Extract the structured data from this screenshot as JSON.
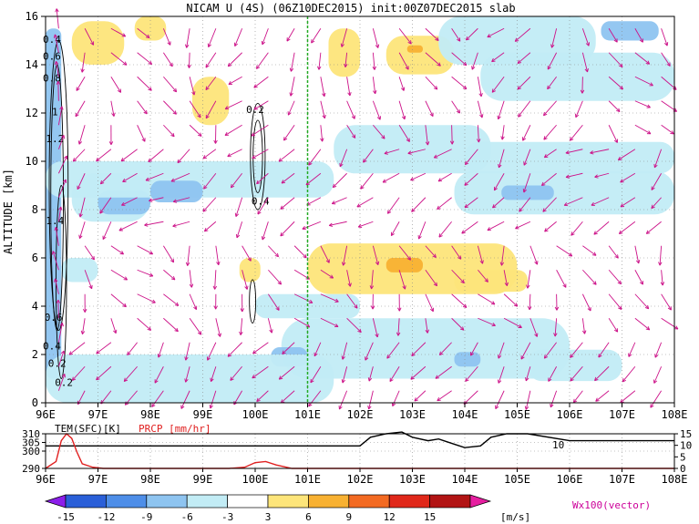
{
  "title": "NICAM U (4S) (06Z10DEC2015) init:00Z07DEC2015 slab",
  "chart_data": [
    {
      "type": "heatmap",
      "name": "u-wind cross-section",
      "ylabel": "ALTITUDE [km]",
      "x_ticks": [
        "96E",
        "97E",
        "98E",
        "99E",
        "100E",
        "101E",
        "102E",
        "103E",
        "104E",
        "105E",
        "106E",
        "107E",
        "108E"
      ],
      "xlim": [
        96,
        108
      ],
      "y_ticks": [
        "0",
        "2",
        "4",
        "6",
        "8",
        "10",
        "12",
        "14",
        "16"
      ],
      "ylim": [
        0,
        16
      ],
      "grid": "dotted",
      "reference_line": {
        "x": 101,
        "color": "#22aa22",
        "style": "dashed"
      },
      "contour_labels": [
        {
          "text": "0.4",
          "lon": 96.12,
          "alt": 14.9
        },
        {
          "text": "0.6",
          "lon": 96.12,
          "alt": 14.2
        },
        {
          "text": "0.8",
          "lon": 96.12,
          "alt": 13.3
        },
        {
          "text": "1",
          "lon": 96.18,
          "alt": 11.9
        },
        {
          "text": "1.2",
          "lon": 96.18,
          "alt": 10.8
        },
        {
          "text": "1.4",
          "lon": 96.18,
          "alt": 7.4
        },
        {
          "text": "0.2",
          "lon": 100.0,
          "alt": 12.0
        },
        {
          "text": "0.4",
          "lon": 100.1,
          "alt": 8.2
        },
        {
          "text": "0.6",
          "lon": 96.15,
          "alt": 3.4
        },
        {
          "text": "0.4",
          "lon": 96.12,
          "alt": 2.2
        },
        {
          "text": "0.2",
          "lon": 96.22,
          "alt": 1.5
        },
        {
          "text": "0.2",
          "lon": 96.35,
          "alt": 0.7
        }
      ],
      "shaded_regions": [
        {
          "lon": [
            96.0,
            96.3
          ],
          "alt": [
            1.0,
            15.5
          ],
          "level": -6
        },
        {
          "lon": [
            96.5,
            98.0
          ],
          "alt": [
            7.5,
            9.5
          ],
          "level": -3
        },
        {
          "lon": [
            97.0,
            98.0
          ],
          "alt": [
            7.8,
            8.8
          ],
          "level": -6
        },
        {
          "lon": [
            96.0,
            101.5
          ],
          "alt": [
            8.5,
            10.0
          ],
          "level": -3
        },
        {
          "lon": [
            98.0,
            99.0
          ],
          "alt": [
            8.3,
            9.2
          ],
          "level": -6
        },
        {
          "lon": [
            96.5,
            97.5
          ],
          "alt": [
            14.0,
            15.8
          ],
          "level": 3
        },
        {
          "lon": [
            97.7,
            98.3
          ],
          "alt": [
            15.0,
            16.0
          ],
          "level": 3
        },
        {
          "lon": [
            98.8,
            99.5
          ],
          "alt": [
            11.5,
            13.5
          ],
          "level": 3
        },
        {
          "lon": [
            99.7,
            100.1
          ],
          "alt": [
            5.0,
            6.0
          ],
          "level": 3
        },
        {
          "lon": [
            101.0,
            105.0
          ],
          "alt": [
            4.5,
            6.6
          ],
          "level": 3
        },
        {
          "lon": [
            102.5,
            103.2
          ],
          "alt": [
            5.4,
            6.0
          ],
          "level": 6
        },
        {
          "lon": [
            103.8,
            105.2
          ],
          "alt": [
            4.6,
            5.5
          ],
          "level": 3
        },
        {
          "lon": [
            101.4,
            102.0
          ],
          "alt": [
            13.5,
            15.5
          ],
          "level": 3
        },
        {
          "lon": [
            102.5,
            103.8
          ],
          "alt": [
            13.6,
            15.2
          ],
          "level": 3
        },
        {
          "lon": [
            102.9,
            103.2
          ],
          "alt": [
            14.5,
            14.8
          ],
          "level": 6
        },
        {
          "lon": [
            103.5,
            106.5
          ],
          "alt": [
            14.0,
            16.0
          ],
          "level": -3
        },
        {
          "lon": [
            104.3,
            108.0
          ],
          "alt": [
            12.5,
            14.5
          ],
          "level": -3
        },
        {
          "lon": [
            106.6,
            107.7
          ],
          "alt": [
            15.0,
            15.8
          ],
          "level": -6
        },
        {
          "lon": [
            101.5,
            104.5
          ],
          "alt": [
            9.5,
            11.5
          ],
          "level": -3
        },
        {
          "lon": [
            104.0,
            108.0
          ],
          "alt": [
            9.5,
            10.8
          ],
          "level": -3
        },
        {
          "lon": [
            103.8,
            108.0
          ],
          "alt": [
            7.8,
            9.6
          ],
          "level": -3
        },
        {
          "lon": [
            104.7,
            105.7
          ],
          "alt": [
            8.4,
            9.0
          ],
          "level": -6
        },
        {
          "lon": [
            100.0,
            102.0
          ],
          "alt": [
            3.5,
            4.5
          ],
          "level": -3
        },
        {
          "lon": [
            100.5,
            106.0
          ],
          "alt": [
            1.0,
            3.5
          ],
          "level": -3
        },
        {
          "lon": [
            100.3,
            101.0
          ],
          "alt": [
            1.5,
            2.3
          ],
          "level": -6
        },
        {
          "lon": [
            103.8,
            104.3
          ],
          "alt": [
            1.5,
            2.1
          ],
          "level": -6
        },
        {
          "lon": [
            105.2,
            107.0
          ],
          "alt": [
            0.9,
            2.2
          ],
          "level": -3
        },
        {
          "lon": [
            96.0,
            101.5
          ],
          "alt": [
            0.0,
            2.0
          ],
          "level": -3
        },
        {
          "lon": [
            96.3,
            97.0
          ],
          "alt": [
            5.0,
            6.0
          ],
          "level": -3
        }
      ]
    },
    {
      "type": "line",
      "name": "surface panel",
      "x_ticks": [
        "96E",
        "97E",
        "98E",
        "99E",
        "100E",
        "101E",
        "102E",
        "103E",
        "104E",
        "105E",
        "106E",
        "107E",
        "108E"
      ],
      "xlim": [
        96,
        108
      ],
      "left_axis": {
        "label": "TEM(SFC)[K]",
        "ticks": [
          "290",
          "300",
          "305",
          "310"
        ],
        "ylim": [
          290,
          310
        ]
      },
      "right_axis": {
        "label": "PRCP [mm/hr]",
        "ticks": [
          "0",
          "5",
          "10",
          "15"
        ],
        "ylim": [
          0,
          15
        ]
      },
      "series": [
        {
          "name": "TEM(SFC)[K]",
          "color": "#000000",
          "x": [
            96.0,
            101.2,
            101.8,
            102.0,
            102.2,
            102.5,
            102.8,
            103.0,
            103.3,
            103.5,
            103.8,
            104.0,
            104.3,
            104.5,
            104.8,
            105.2,
            106.0,
            108.0
          ],
          "values": [
            303,
            303,
            303,
            303,
            308,
            310,
            311,
            308,
            306,
            307,
            304,
            302,
            303,
            308,
            310,
            310,
            306,
            306
          ]
        },
        {
          "name": "PRCP [mm/hr]",
          "color": "#e02020",
          "x": [
            96.0,
            96.2,
            96.3,
            96.4,
            96.5,
            96.6,
            96.7,
            96.9,
            97.1,
            99.5,
            99.8,
            100.0,
            100.2,
            100.4,
            100.7,
            108.0
          ],
          "values": [
            0,
            3,
            12,
            15,
            13,
            7,
            2,
            0.5,
            0,
            0,
            0.5,
            2.5,
            3,
            1.5,
            0,
            0
          ]
        }
      ],
      "labels": [
        "TEM(SFC)[K]",
        "PRCP [mm/hr]",
        "10"
      ]
    }
  ],
  "colorbar": {
    "levels": [
      "-15",
      "-12",
      "-9",
      "-6",
      "-3",
      "3",
      "6",
      "9",
      "12",
      "15"
    ],
    "colors": [
      "#8c1eea",
      "#2a5fd8",
      "#4e8ee8",
      "#8ec4f0",
      "#c2ecf5",
      "#ffffff",
      "#fde57a",
      "#f8b132",
      "#f36a22",
      "#e0281a",
      "#b21414",
      "#e61ea0"
    ],
    "unit": "[m/s]",
    "vector_label": "Wx100(vector)"
  }
}
